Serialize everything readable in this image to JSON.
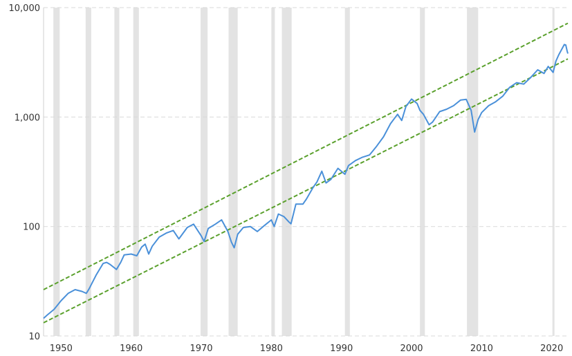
{
  "chart_data": {
    "type": "line",
    "title": "",
    "xlabel": "",
    "ylabel": "",
    "y_scale": "log",
    "xlim": [
      1947.5,
      2022.3
    ],
    "ylim": [
      10,
      10000
    ],
    "y_ticks": [
      {
        "value": 10,
        "label": "10"
      },
      {
        "value": 100,
        "label": "100"
      },
      {
        "value": 1000,
        "label": "1,000"
      },
      {
        "value": 10000,
        "label": "10,000"
      }
    ],
    "x_ticks": [
      {
        "value": 1950,
        "label": "1950"
      },
      {
        "value": 1960,
        "label": "1960"
      },
      {
        "value": 1970,
        "label": "1970"
      },
      {
        "value": 1980,
        "label": "1980"
      },
      {
        "value": 1990,
        "label": "1990"
      },
      {
        "value": 2000,
        "label": "2000"
      },
      {
        "value": 2010,
        "label": "2010"
      },
      {
        "value": 2020,
        "label": "2020"
      }
    ],
    "grid": {
      "horizontal": true,
      "style": "dashed"
    },
    "colors": {
      "line": "#4a90d9",
      "trend": "#5aa02c",
      "recession": "#e3e3e3",
      "axis": "#cfcfcf"
    },
    "shaded_periods": [
      [
        1948.9,
        1949.8
      ],
      [
        1953.5,
        1954.3
      ],
      [
        1957.6,
        1958.3
      ],
      [
        1960.3,
        1961.1
      ],
      [
        1969.9,
        1970.9
      ],
      [
        1973.9,
        1975.2
      ],
      [
        1980.0,
        1980.5
      ],
      [
        1981.5,
        1982.9
      ],
      [
        1990.5,
        1991.2
      ],
      [
        2001.2,
        2001.9
      ],
      [
        2007.9,
        2009.5
      ],
      [
        2020.1,
        2020.4
      ]
    ],
    "series": [
      {
        "points": [
          [
            1947.5,
            14.5
          ],
          [
            1948.0,
            15.5
          ],
          [
            1949.0,
            17.5
          ],
          [
            1950.0,
            21
          ],
          [
            1951.0,
            24.5
          ],
          [
            1952.0,
            26.5
          ],
          [
            1953.0,
            25.5
          ],
          [
            1953.6,
            24.5
          ],
          [
            1954.0,
            27
          ],
          [
            1955.0,
            36
          ],
          [
            1956.0,
            46
          ],
          [
            1956.5,
            47
          ],
          [
            1957.0,
            45
          ],
          [
            1957.9,
            40.5
          ],
          [
            1958.5,
            47
          ],
          [
            1959.0,
            55
          ],
          [
            1960.0,
            56
          ],
          [
            1960.8,
            54
          ],
          [
            1961.5,
            65
          ],
          [
            1962.0,
            69
          ],
          [
            1962.5,
            56
          ],
          [
            1963.0,
            66
          ],
          [
            1964.0,
            80
          ],
          [
            1965.0,
            87
          ],
          [
            1966.0,
            92
          ],
          [
            1966.8,
            77
          ],
          [
            1968.0,
            98
          ],
          [
            1968.9,
            105
          ],
          [
            1970.0,
            82
          ],
          [
            1970.4,
            73
          ],
          [
            1971.0,
            96
          ],
          [
            1972.0,
            105
          ],
          [
            1972.9,
            115
          ],
          [
            1973.8,
            90
          ],
          [
            1974.3,
            72
          ],
          [
            1974.7,
            64
          ],
          [
            1975.2,
            85
          ],
          [
            1976.0,
            98
          ],
          [
            1977.0,
            100
          ],
          [
            1978.0,
            90
          ],
          [
            1979.0,
            102
          ],
          [
            1980.0,
            115
          ],
          [
            1980.4,
            100
          ],
          [
            1981.0,
            130
          ],
          [
            1981.8,
            123
          ],
          [
            1982.5,
            110
          ],
          [
            1982.8,
            106
          ],
          [
            1983.5,
            160
          ],
          [
            1984.5,
            160
          ],
          [
            1985.0,
            178
          ],
          [
            1986.0,
            230
          ],
          [
            1986.5,
            255
          ],
          [
            1987.2,
            320
          ],
          [
            1987.8,
            250
          ],
          [
            1988.5,
            270
          ],
          [
            1989.5,
            340
          ],
          [
            1990.5,
            300
          ],
          [
            1991.0,
            360
          ],
          [
            1992.0,
            400
          ],
          [
            1993.0,
            430
          ],
          [
            1994.0,
            450
          ],
          [
            1995.0,
            540
          ],
          [
            1996.0,
            660
          ],
          [
            1997.0,
            870
          ],
          [
            1998.0,
            1060
          ],
          [
            1998.6,
            930
          ],
          [
            1999.2,
            1250
          ],
          [
            2000.0,
            1460
          ],
          [
            2000.8,
            1330
          ],
          [
            2001.2,
            1150
          ],
          [
            2001.7,
            1060
          ],
          [
            2002.5,
            850
          ],
          [
            2003.0,
            900
          ],
          [
            2004.0,
            1120
          ],
          [
            2005.0,
            1180
          ],
          [
            2006.0,
            1270
          ],
          [
            2007.0,
            1430
          ],
          [
            2007.8,
            1450
          ],
          [
            2008.5,
            1150
          ],
          [
            2009.0,
            730
          ],
          [
            2009.5,
            950
          ],
          [
            2010.0,
            1100
          ],
          [
            2011.0,
            1270
          ],
          [
            2012.0,
            1380
          ],
          [
            2013.0,
            1550
          ],
          [
            2014.0,
            1870
          ],
          [
            2015.0,
            2060
          ],
          [
            2016.0,
            2000
          ],
          [
            2017.0,
            2300
          ],
          [
            2018.0,
            2700
          ],
          [
            2018.9,
            2500
          ],
          [
            2019.5,
            2900
          ],
          [
            2020.2,
            2560
          ],
          [
            2020.6,
            3250
          ],
          [
            2021.0,
            3700
          ],
          [
            2021.8,
            4600
          ],
          [
            2022.0,
            4550
          ],
          [
            2022.2,
            4000
          ],
          [
            2022.3,
            3800
          ]
        ]
      }
    ],
    "trend_lines": [
      {
        "from": [
          1947.5,
          26.5
        ],
        "to": [
          2022.3,
          7200
        ]
      },
      {
        "from": [
          1947.5,
          13.2
        ],
        "to": [
          2022.3,
          3400
        ]
      }
    ]
  }
}
